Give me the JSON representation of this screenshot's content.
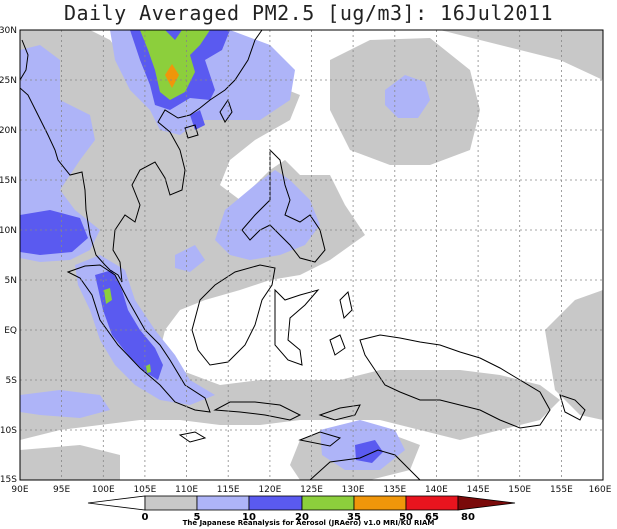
{
  "title": "Daily Averaged PM2.5 [ug/m3]: 16Jul2011",
  "lat_labels": [
    "30N",
    "25N",
    "20N",
    "15N",
    "10N",
    "5N",
    "EQ",
    "5S",
    "10S",
    "15S"
  ],
  "lon_labels": [
    "90E",
    "95E",
    "100E",
    "105E",
    "110E",
    "115E",
    "120E",
    "125E",
    "130E",
    "135E",
    "140E",
    "145E",
    "150E",
    "155E",
    "160E"
  ],
  "colorbar": {
    "levels": [
      "0",
      "5",
      "10",
      "20",
      "35",
      "50",
      "65",
      "80"
    ],
    "colors": [
      "#ffffff",
      "#c8c8c8",
      "#aeb4f8",
      "#5a5af0",
      "#8ccf3c",
      "#f0960a",
      "#e8141e",
      "#7a0a0a"
    ]
  },
  "credit": "The Japanese Reanalysis for Aerosol (JRAero) v1.0 MRI/KU RIAM"
}
